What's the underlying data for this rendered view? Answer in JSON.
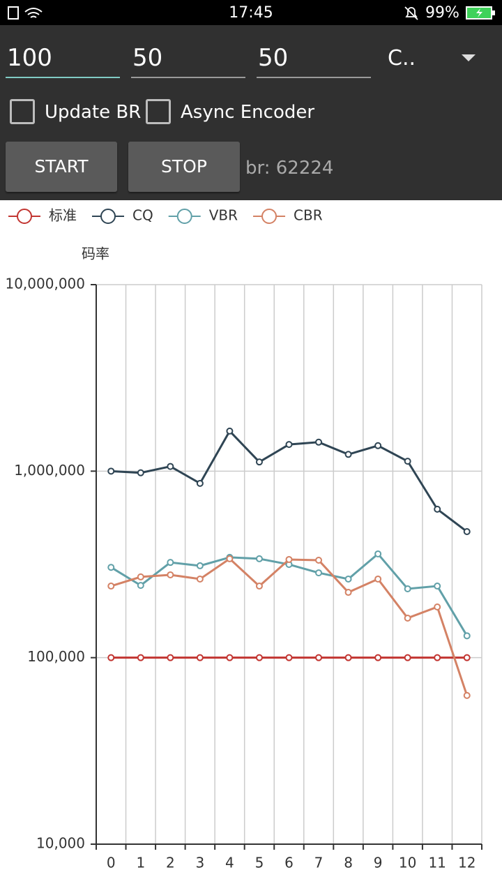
{
  "status_bar": {
    "time": "17:45",
    "battery": "99%"
  },
  "controls": {
    "inputs": [
      "100",
      "50",
      "50"
    ],
    "spinner": "C..",
    "checkboxes": [
      "Update BR",
      "Async Encoder"
    ],
    "buttons": [
      "START",
      "STOP"
    ],
    "bitrate_text": "br: 62224"
  },
  "chart_data": {
    "type": "line",
    "y_label": "码率",
    "log_y": true,
    "grid": true,
    "legend": "top-left",
    "categories": [
      "0",
      "1",
      "2",
      "3",
      "4",
      "5",
      "6",
      "7",
      "8",
      "9",
      "10",
      "11",
      "12"
    ],
    "series": [
      {
        "name": "标准",
        "color": "#c23531",
        "values": [
          100000,
          100000,
          100000,
          100000,
          100000,
          100000,
          100000,
          100000,
          100000,
          100000,
          100000,
          100000,
          100000
        ]
      },
      {
        "name": "CQ",
        "color": "#2f4554",
        "values": [
          1000000,
          980000,
          1060000,
          860000,
          1640000,
          1120000,
          1390000,
          1430000,
          1230000,
          1370000,
          1130000,
          625000,
          474000
        ]
      },
      {
        "name": "VBR",
        "color": "#61a0a8",
        "values": [
          305000,
          244000,
          324000,
          311000,
          345000,
          339000,
          316000,
          285000,
          264000,
          360000,
          234000,
          242000,
          131000
        ]
      },
      {
        "name": "CBR",
        "color": "#d48265",
        "values": [
          242000,
          271000,
          278000,
          264000,
          339000,
          242000,
          336000,
          333000,
          224000,
          264000,
          163000,
          187000,
          62700
        ]
      }
    ],
    "ylim": [
      10000,
      10000000
    ],
    "yticks": [
      {
        "value": 10000,
        "label": "10,000"
      },
      {
        "value": 100000,
        "label": "100,000"
      },
      {
        "value": 1000000,
        "label": "1,000,000"
      },
      {
        "value": 10000000,
        "label": "10,000,000"
      }
    ]
  }
}
